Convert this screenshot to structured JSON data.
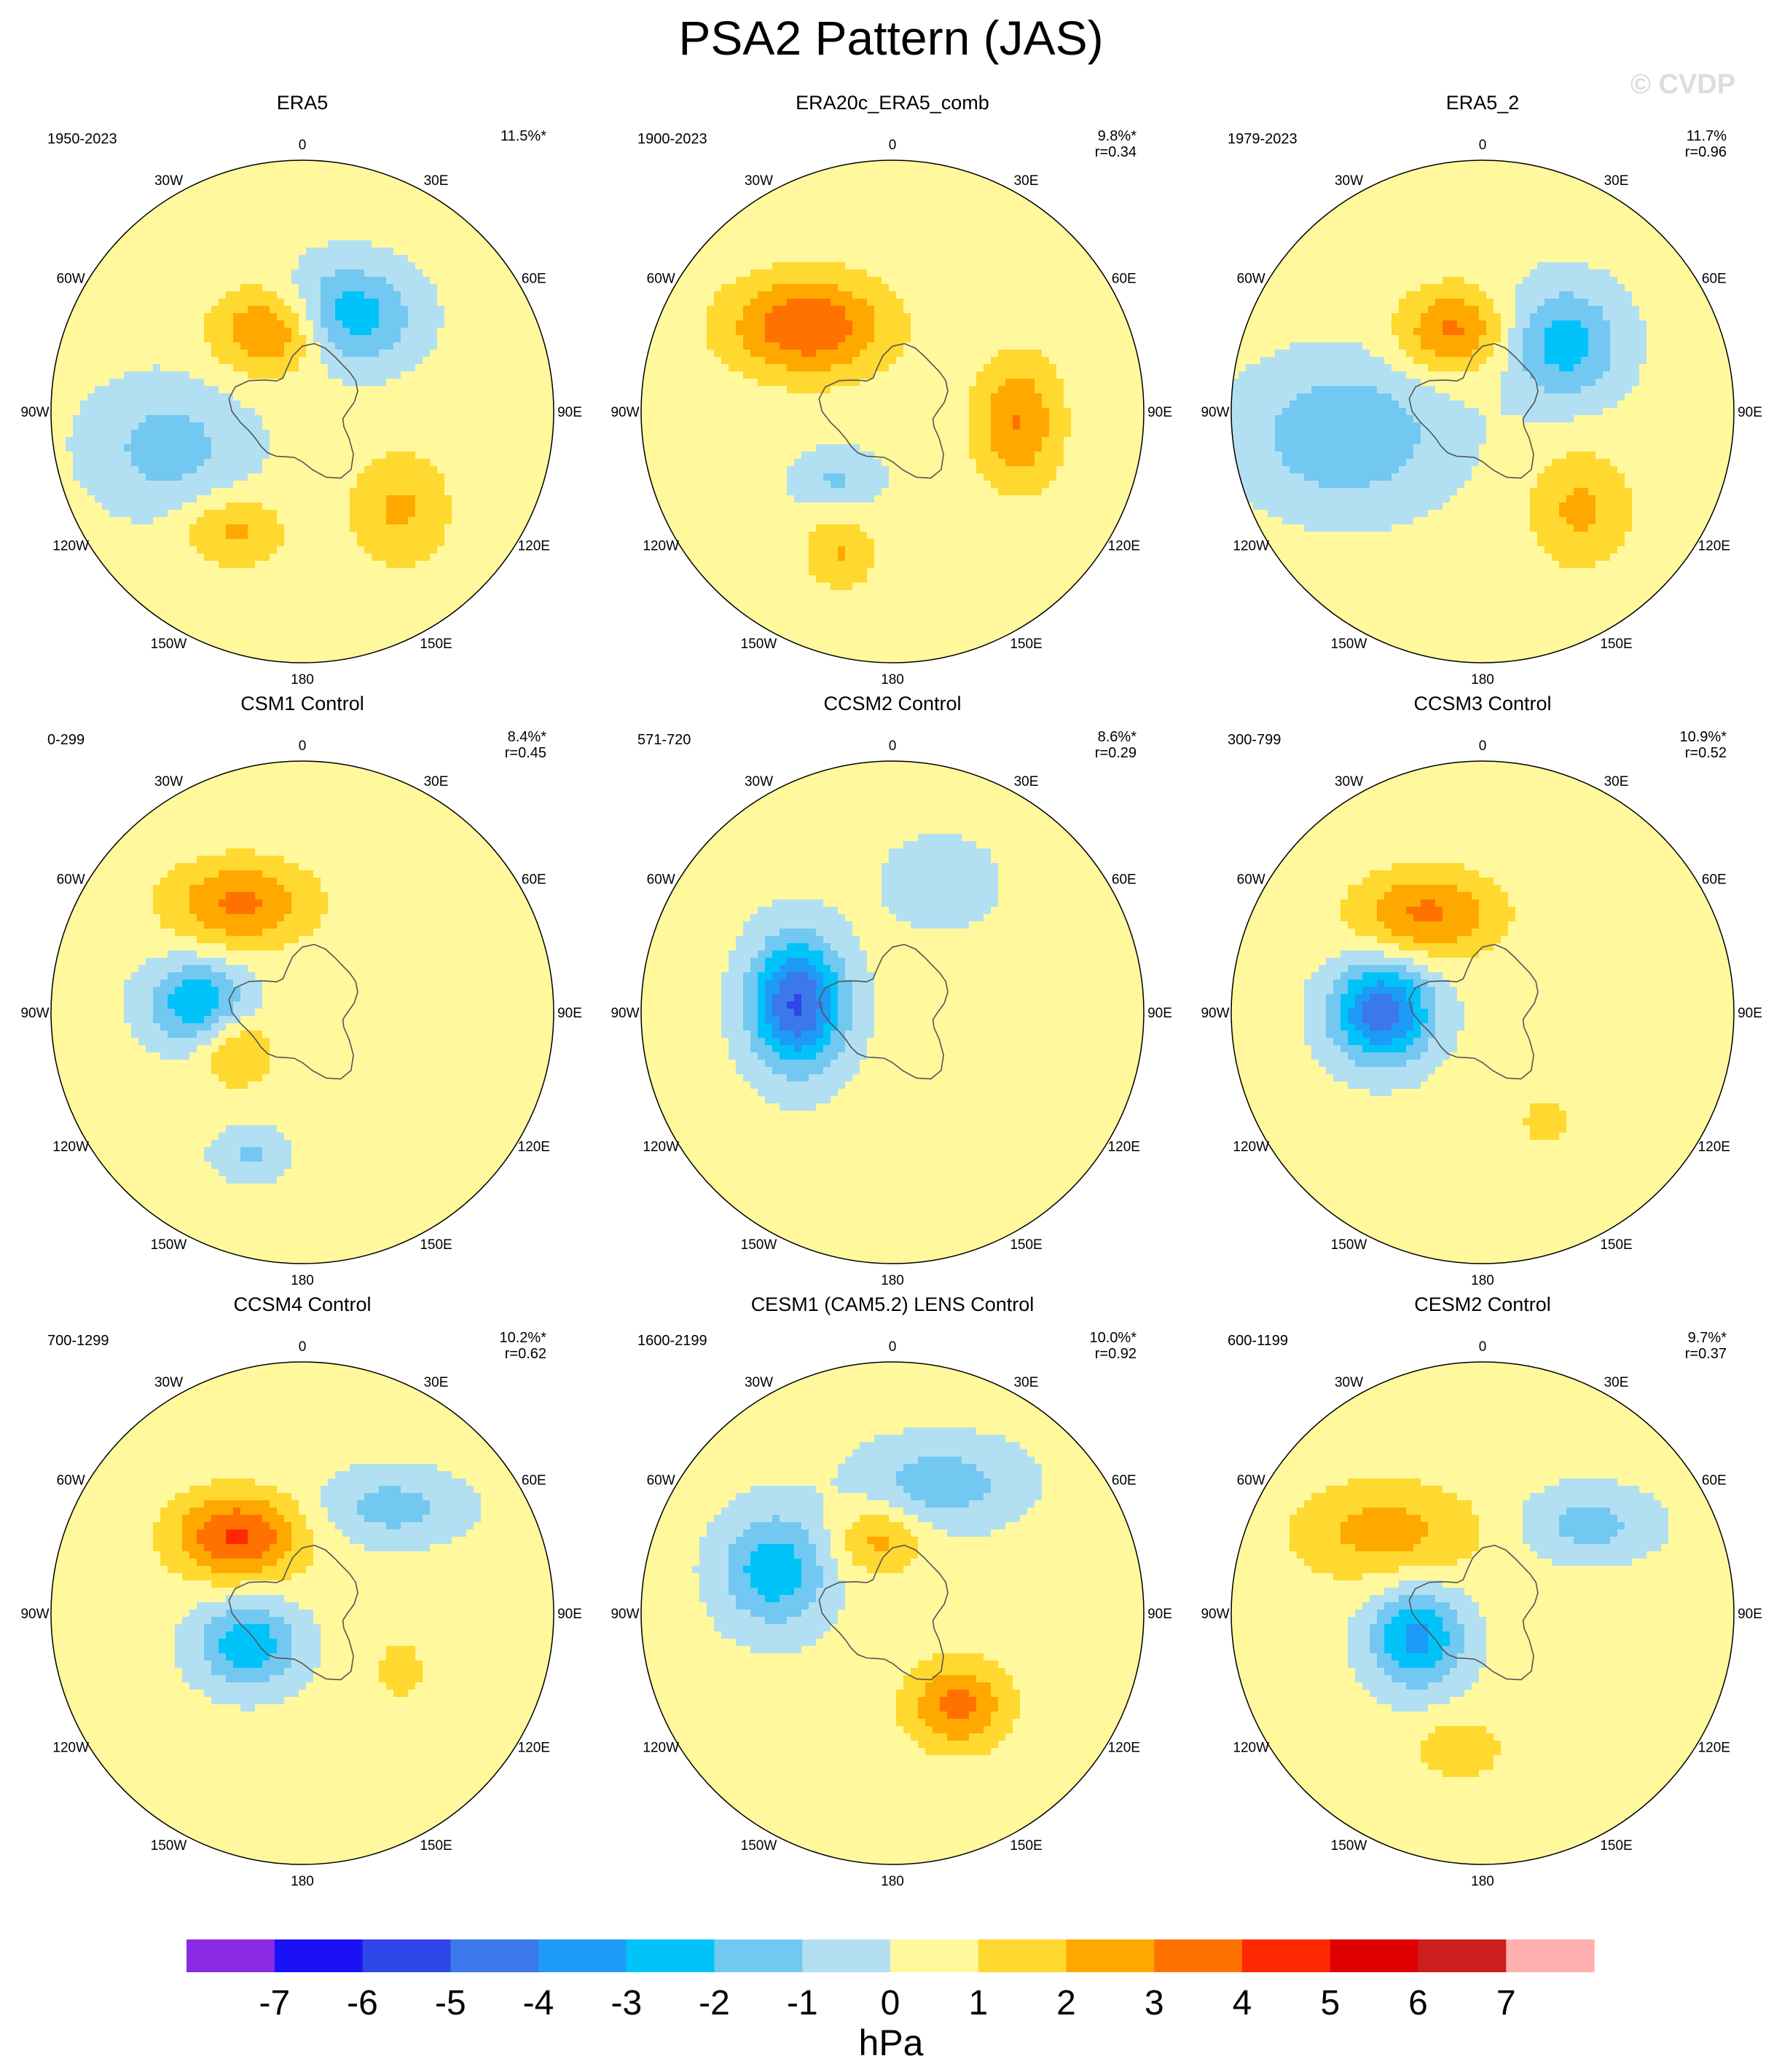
{
  "title": "PSA2 Pattern (JAS)",
  "watermark": "© CVDP",
  "colors": {
    "land_outline": "#555555",
    "circle_outline": "#000000",
    "background": "#ffffff"
  },
  "lon_labels": [
    "0",
    "30E",
    "60E",
    "90E",
    "120E",
    "150E",
    "180",
    "150W",
    "120W",
    "90W",
    "60W",
    "30W"
  ],
  "chart_data": {
    "type": "heatmap",
    "projection": "south polar stereographic",
    "units": "hPa",
    "panels": [
      {
        "name": "ERA5",
        "period": "1950-2023",
        "pct": "11.5%*",
        "r": "",
        "centers": [
          {
            "angle": -160,
            "dist": 0.34,
            "val": 3.1,
            "sx": 0.16,
            "sy": 0.12
          },
          {
            "angle": 155,
            "dist": 0.42,
            "val": -3.2,
            "sx": 0.18,
            "sy": 0.14
          },
          {
            "angle": -75,
            "dist": 0.55,
            "val": -1.8,
            "sx": 0.22,
            "sy": 0.18
          },
          {
            "angle": -30,
            "dist": 0.55,
            "val": 1.9,
            "sx": 0.14,
            "sy": 0.1
          },
          {
            "angle": 45,
            "dist": 0.55,
            "val": 1.8,
            "sx": 0.14,
            "sy": 0.16
          }
        ]
      },
      {
        "name": "ERA20c_ERA5_comb",
        "period": "1900-2023",
        "pct": "9.8%*",
        "r": "r=0.34",
        "centers": [
          {
            "angle": -135,
            "dist": 0.48,
            "val": 3.6,
            "sx": 0.22,
            "sy": 0.14
          },
          {
            "angle": 85,
            "dist": 0.5,
            "val": 2.7,
            "sx": 0.12,
            "sy": 0.18
          },
          {
            "angle": -40,
            "dist": 0.35,
            "val": -1.5,
            "sx": 0.12,
            "sy": 0.08
          },
          {
            "angle": -20,
            "dist": 0.6,
            "val": 1.7,
            "sx": 0.1,
            "sy": 0.1
          }
        ]
      },
      {
        "name": "ERA5_2",
        "period": "1979-2023",
        "pct": "11.7%",
        "r": "r=0.96",
        "centers": [
          {
            "angle": -160,
            "dist": 0.34,
            "val": 2.9,
            "sx": 0.15,
            "sy": 0.12
          },
          {
            "angle": 130,
            "dist": 0.42,
            "val": -2.9,
            "sx": 0.16,
            "sy": 0.16
          },
          {
            "angle": -80,
            "dist": 0.55,
            "val": -2.3,
            "sx": 0.28,
            "sy": 0.2
          },
          {
            "angle": 45,
            "dist": 0.55,
            "val": 1.9,
            "sx": 0.14,
            "sy": 0.16
          }
        ]
      },
      {
        "name": "CSM1 Control",
        "period": "0-299",
        "pct": "8.4%*",
        "r": "r=0.45",
        "centers": [
          {
            "angle": -95,
            "dist": 0.42,
            "val": -3.2,
            "sx": 0.14,
            "sy": 0.12
          },
          {
            "angle": -150,
            "dist": 0.5,
            "val": 2.9,
            "sx": 0.2,
            "sy": 0.12
          },
          {
            "angle": -60,
            "dist": 0.3,
            "val": 2.0,
            "sx": 0.1,
            "sy": 0.1
          },
          {
            "angle": -20,
            "dist": 0.6,
            "val": -1.6,
            "sx": 0.1,
            "sy": 0.07
          }
        ]
      },
      {
        "name": "CCSM2 Control",
        "period": "571-720",
        "pct": "8.6%*",
        "r": "r=0.29",
        "centers": [
          {
            "angle": -95,
            "dist": 0.38,
            "val": -5.5,
            "sx": 0.13,
            "sy": 0.18
          },
          {
            "angle": 160,
            "dist": 0.55,
            "val": -1.3,
            "sx": 0.15,
            "sy": 0.12
          }
        ]
      },
      {
        "name": "CCSM3 Control",
        "period": "300-799",
        "pct": "10.9%*",
        "r": "r=0.52",
        "centers": [
          {
            "angle": -90,
            "dist": 0.4,
            "val": -5.0,
            "sx": 0.14,
            "sy": 0.14
          },
          {
            "angle": -150,
            "dist": 0.45,
            "val": 2.9,
            "sx": 0.2,
            "sy": 0.12
          },
          {
            "angle": 30,
            "dist": 0.5,
            "val": 1.5,
            "sx": 0.06,
            "sy": 0.06
          }
        ]
      },
      {
        "name": "CCSM4 Control",
        "period": "700-1299",
        "pct": "10.2%*",
        "r": "r=0.62",
        "centers": [
          {
            "angle": -60,
            "dist": 0.25,
            "val": -3.2,
            "sx": 0.14,
            "sy": 0.12
          },
          {
            "angle": -140,
            "dist": 0.4,
            "val": 3.8,
            "sx": 0.18,
            "sy": 0.12
          },
          {
            "angle": 140,
            "dist": 0.55,
            "val": -1.8,
            "sx": 0.2,
            "sy": 0.1
          },
          {
            "angle": 60,
            "dist": 0.45,
            "val": 1.6,
            "sx": 0.06,
            "sy": 0.08
          }
        ]
      },
      {
        "name": "CESM1 (CAM5.2) LENS Control",
        "period": "1600-2199",
        "pct": "10.0%*",
        "r": "r=0.92",
        "centers": [
          {
            "angle": -110,
            "dist": 0.5,
            "val": -3.1,
            "sx": 0.15,
            "sy": 0.16
          },
          {
            "angle": 35,
            "dist": 0.45,
            "val": 3.0,
            "sx": 0.14,
            "sy": 0.12
          },
          {
            "angle": -170,
            "dist": 0.3,
            "val": 2.0,
            "sx": 0.12,
            "sy": 0.1
          },
          {
            "angle": 160,
            "dist": 0.55,
            "val": -2.0,
            "sx": 0.22,
            "sy": 0.12
          }
        ]
      },
      {
        "name": "CESM2 Control",
        "period": "600-1199",
        "pct": "9.7%*",
        "r": "r=0.37",
        "centers": [
          {
            "angle": -70,
            "dist": 0.28,
            "val": -3.7,
            "sx": 0.13,
            "sy": 0.14
          },
          {
            "angle": -130,
            "dist": 0.5,
            "val": 2.1,
            "sx": 0.26,
            "sy": 0.14
          },
          {
            "angle": 130,
            "dist": 0.55,
            "val": -1.8,
            "sx": 0.18,
            "sy": 0.1
          },
          {
            "angle": -10,
            "dist": 0.55,
            "val": 1.6,
            "sx": 0.12,
            "sy": 0.08
          }
        ]
      }
    ],
    "colorbar": {
      "label": "hPa",
      "ticks": [
        "-7",
        "-6",
        "-5",
        "-4",
        "-3",
        "-2",
        "-1",
        "0",
        "1",
        "2",
        "3",
        "4",
        "5",
        "6",
        "7"
      ],
      "colors": [
        "#8a2be2",
        "#1a12f5",
        "#2e45e8",
        "#3a78ec",
        "#1e9af7",
        "#00c4f9",
        "#73c8f2",
        "#b2e0f2",
        "#fff89c",
        "#ffd830",
        "#ffa800",
        "#ff7200",
        "#ff2800",
        "#e10000",
        "#cc1e1e",
        "#ffb0b0"
      ]
    }
  }
}
